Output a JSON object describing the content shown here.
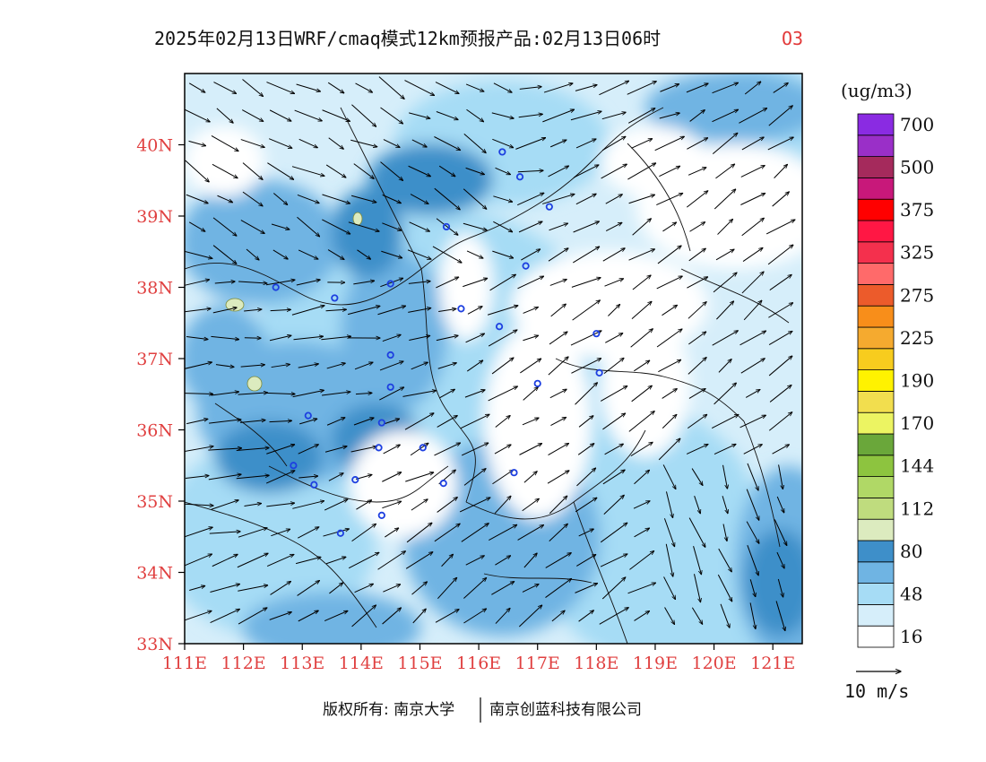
{
  "title": {
    "main": "2025年02月13日WRF/cmaq模式12km预报产品:02月13日06时",
    "species": "O3"
  },
  "map": {
    "lon_range": [
      111,
      121.5
    ],
    "lat_range": [
      33,
      41
    ],
    "x_ticks": [
      "111E",
      "112E",
      "113E",
      "114E",
      "115E",
      "116E",
      "117E",
      "118E",
      "119E",
      "120E",
      "121E"
    ],
    "y_ticks": [
      "33N",
      "34N",
      "35N",
      "36N",
      "37N",
      "38N",
      "39N",
      "40N"
    ],
    "cities": [
      [
        112.55,
        38.0
      ],
      [
        113.55,
        37.85
      ],
      [
        114.5,
        38.05
      ],
      [
        115.45,
        38.85
      ],
      [
        116.4,
        39.9
      ],
      [
        116.7,
        39.55
      ],
      [
        117.2,
        39.13
      ],
      [
        116.8,
        38.3
      ],
      [
        115.7,
        37.7
      ],
      [
        116.35,
        37.45
      ],
      [
        118.0,
        37.35
      ],
      [
        118.05,
        36.8
      ],
      [
        117.0,
        36.65
      ],
      [
        114.5,
        37.05
      ],
      [
        114.5,
        36.6
      ],
      [
        113.1,
        36.2
      ],
      [
        114.35,
        36.1
      ],
      [
        114.3,
        35.75
      ],
      [
        115.05,
        35.75
      ],
      [
        113.9,
        35.3
      ],
      [
        112.85,
        35.5
      ],
      [
        113.2,
        35.23
      ],
      [
        115.4,
        35.25
      ],
      [
        116.6,
        35.4
      ],
      [
        114.35,
        34.8
      ],
      [
        113.65,
        34.55
      ]
    ],
    "color_note": "O3 concentration shading with wind vectors"
  },
  "legend": {
    "unit": "(ug/m3)",
    "bins": [
      {
        "color": "#ffffff",
        "label": "16"
      },
      {
        "color": "#d6eefa",
        "label": ""
      },
      {
        "color": "#a6dcf5",
        "label": "48"
      },
      {
        "color": "#6fb4e3",
        "label": ""
      },
      {
        "color": "#3e8fc9",
        "label": "80"
      },
      {
        "color": "#dcebbf",
        "label": ""
      },
      {
        "color": "#bfdc7e",
        "label": "112"
      },
      {
        "color": "#b0d866",
        "label": ""
      },
      {
        "color": "#8dc43f",
        "label": "144"
      },
      {
        "color": "#6aa73a",
        "label": ""
      },
      {
        "color": "#ecf462",
        "label": "170"
      },
      {
        "color": "#f2de4e",
        "label": ""
      },
      {
        "color": "#fff200",
        "label": "190"
      },
      {
        "color": "#f7cc1e",
        "label": ""
      },
      {
        "color": "#f5aa2f",
        "label": "225"
      },
      {
        "color": "#f88e1a",
        "label": ""
      },
      {
        "color": "#ec5b2b",
        "label": "275"
      },
      {
        "color": "#ff6a6a",
        "label": ""
      },
      {
        "color": "#f4304d",
        "label": "325"
      },
      {
        "color": "#ff1744",
        "label": ""
      },
      {
        "color": "#ff0000",
        "label": "375"
      },
      {
        "color": "#c8187a",
        "label": ""
      },
      {
        "color": "#a52a5c",
        "label": "500"
      },
      {
        "color": "#9a2fc8",
        "label": ""
      },
      {
        "color": "#8a2be2",
        "label": "700"
      }
    ],
    "wind_ref": "10 m/s"
  },
  "copyright": {
    "left": "版权所有: 南京大学",
    "right": "南京创蓝科技有限公司"
  }
}
